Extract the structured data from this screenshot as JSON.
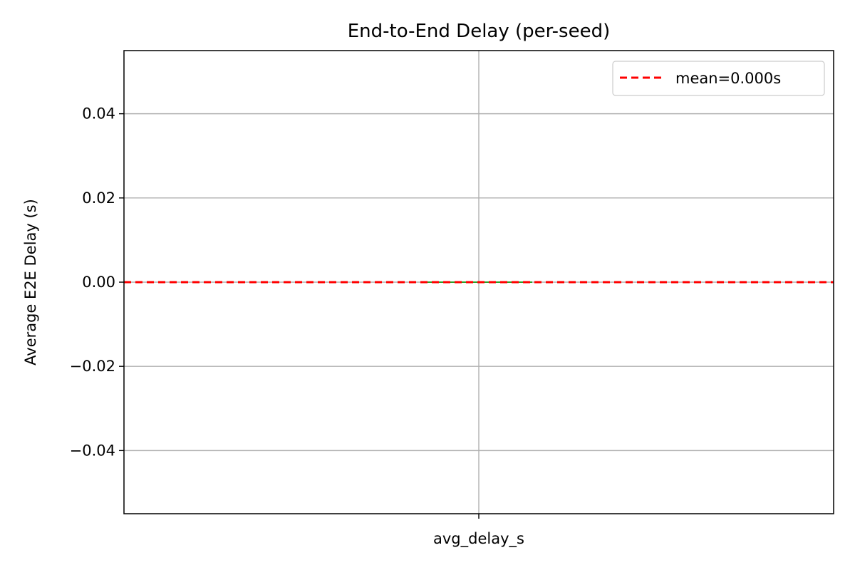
{
  "chart_data": {
    "type": "bar",
    "title": "End-to-End Delay (per-seed)",
    "xlabel": "",
    "ylabel": "Average E2E Delay (s)",
    "categories": [
      "avg_delay_s"
    ],
    "values": [
      0.0
    ],
    "ylim": [
      -0.055,
      0.055
    ],
    "yticks": [
      -0.04,
      -0.02,
      0.0,
      0.02,
      0.04
    ],
    "ytick_labels": [
      "−0.04",
      "−0.02",
      "0.00",
      "0.02",
      "0.04"
    ],
    "grid": true,
    "bar_color": "#2ca02c",
    "mean_line": {
      "value": 0.0,
      "label": "mean=0.000s",
      "color": "#ff0000",
      "style": "dashed"
    },
    "legend_position": "top-right"
  }
}
